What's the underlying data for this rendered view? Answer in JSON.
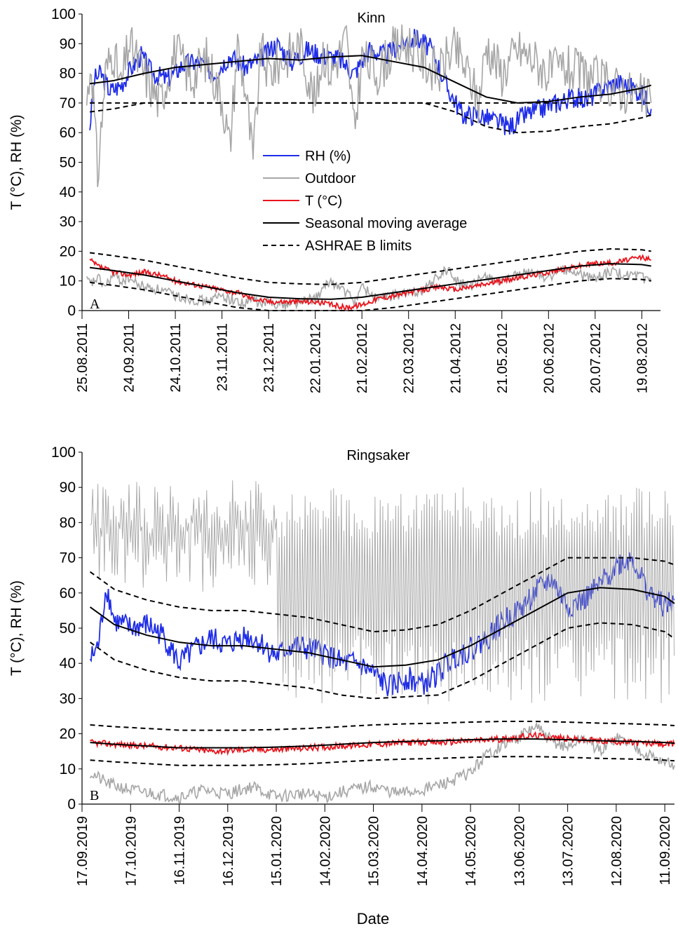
{
  "figure": {
    "x_title": "Date",
    "y_title": "T (°C), RH (%)"
  },
  "chart_data": [
    {
      "type": "line",
      "title": "Kinn",
      "panel_label": "A",
      "ylabel": "T (°C), RH (%)",
      "ylim": [
        0,
        100
      ],
      "yticks": [
        0,
        10,
        20,
        30,
        40,
        50,
        60,
        70,
        80,
        90,
        100
      ],
      "x_tick_labels": [
        "25.08.2011",
        "24.09.2011",
        "24.10.2011",
        "23.11.2011",
        "23.12.2011",
        "22.01.2012",
        "21.02.2012",
        "22.03.2012",
        "21.04.2012",
        "21.05.2012",
        "20.06.2012",
        "20.07.2012",
        "19.08.2012"
      ],
      "x_tick_days": [
        0,
        30,
        60,
        90,
        120,
        150,
        180,
        210,
        240,
        270,
        300,
        330,
        360
      ],
      "xlim_days": [
        0,
        372
      ],
      "legend_position": "center-left",
      "series": [
        {
          "name": "RH (%)",
          "color": "#1f2de8",
          "style": "solid",
          "x_days": [
            5,
            8,
            12,
            18,
            25,
            32,
            38,
            45,
            55,
            65,
            75,
            85,
            95,
            105,
            115,
            125,
            135,
            145,
            155,
            165,
            175,
            185,
            195,
            205,
            215,
            225,
            235,
            245,
            255,
            265,
            275,
            285,
            295,
            305,
            315,
            325,
            335,
            345,
            355,
            362,
            366
          ],
          "values": [
            62,
            78,
            80,
            74,
            76,
            82,
            86,
            80,
            78,
            83,
            84,
            80,
            86,
            82,
            85,
            90,
            84,
            88,
            86,
            85,
            80,
            88,
            86,
            90,
            92,
            88,
            75,
            66,
            66,
            64,
            62,
            66,
            68,
            70,
            72,
            71,
            75,
            77,
            75,
            72,
            68
          ]
        },
        {
          "name": "Outdoor",
          "color": "#a6a6a6",
          "style": "solid",
          "x_days": [
            3,
            6,
            10,
            15,
            20,
            25,
            30,
            35,
            40,
            50,
            60,
            70,
            80,
            90,
            95,
            100,
            105,
            110,
            115,
            120,
            130,
            140,
            150,
            155,
            160,
            170,
            175,
            180,
            190,
            200,
            210,
            220,
            230,
            235,
            240,
            250,
            255,
            260,
            270,
            280,
            290,
            300,
            310,
            320,
            330,
            340,
            350,
            360,
            366
          ],
          "values": [
            10,
            9,
            11,
            8,
            12,
            10,
            11,
            9,
            8,
            7,
            5,
            4,
            3,
            5,
            4,
            3,
            2,
            4,
            2,
            3,
            2,
            3,
            4,
            7,
            10,
            6,
            3,
            8,
            4,
            5,
            6,
            7,
            12,
            14,
            10,
            8,
            10,
            12,
            9,
            12,
            13,
            11,
            14,
            12,
            11,
            13,
            12,
            11,
            10
          ],
          "values_rh": [
            70,
            85,
            45,
            80,
            88,
            75,
            90,
            85,
            80,
            70,
            88,
            78,
            85,
            72,
            55,
            90,
            75,
            50,
            88,
            80,
            85,
            90,
            70,
            88,
            80,
            92,
            60,
            85,
            80,
            88,
            90,
            84,
            80,
            86,
            88,
            78,
            70,
            90,
            80,
            88,
            85,
            80,
            82,
            80,
            78,
            76,
            74,
            72,
            70
          ]
        },
        {
          "name": "T (°C)",
          "color": "#e8141c",
          "style": "solid",
          "x_days": [
            5,
            10,
            20,
            30,
            40,
            50,
            60,
            70,
            80,
            90,
            100,
            110,
            120,
            130,
            140,
            150,
            160,
            170,
            180,
            190,
            200,
            210,
            220,
            230,
            240,
            250,
            260,
            270,
            280,
            290,
            300,
            310,
            320,
            330,
            340,
            350,
            360,
            366
          ],
          "values": [
            17,
            15,
            13,
            12,
            13,
            12,
            10,
            9,
            8,
            7,
            6,
            4,
            3,
            3,
            3,
            3,
            2,
            1,
            2,
            4,
            5,
            6,
            7,
            8,
            7,
            8,
            9,
            10,
            11,
            12,
            13,
            14,
            15,
            16,
            16,
            17,
            18,
            17
          ]
        },
        {
          "name": "Seasonal moving average",
          "color": "#000000",
          "style": "solid",
          "x_days": [
            5,
            20,
            40,
            60,
            80,
            100,
            120,
            140,
            160,
            180,
            200,
            220,
            240,
            260,
            280,
            300,
            320,
            340,
            360,
            366
          ],
          "values_rh": [
            76.5,
            77.5,
            80,
            82,
            83,
            84,
            85,
            84.5,
            85.5,
            86,
            84,
            82,
            77,
            72,
            70,
            70.5,
            72,
            73,
            75,
            76
          ],
          "values": [
            14.5,
            13.5,
            12,
            10,
            8,
            6,
            4.5,
            4,
            3.8,
            4.5,
            6,
            7.5,
            9,
            10.5,
            12,
            13.5,
            15,
            15.8,
            15.5,
            15
          ]
        },
        {
          "name": "ASHRAE B limits",
          "color": "#000000",
          "style": "dashed",
          "x_days": [
            5,
            20,
            40,
            60,
            80,
            100,
            120,
            140,
            160,
            180,
            200,
            220,
            240,
            260,
            280,
            300,
            320,
            340,
            360,
            366
          ],
          "upper_t": [
            19.5,
            18.5,
            17,
            15,
            13,
            11,
            9.5,
            9,
            8.8,
            9.5,
            11,
            12.5,
            14,
            15.5,
            17,
            18.5,
            20,
            20.8,
            20.5,
            20
          ],
          "lower_t": [
            9.5,
            8.5,
            7,
            5,
            3,
            1,
            0,
            0,
            0,
            0,
            1,
            2.5,
            4,
            5.5,
            7,
            8.5,
            10,
            10.8,
            10.5,
            10
          ],
          "upper_rh": [
            70,
            70,
            70,
            70,
            70,
            70,
            70,
            70,
            70,
            70,
            70,
            70,
            70,
            70,
            70,
            70,
            70,
            70,
            70,
            70
          ],
          "lower_rh": [
            67,
            68,
            70,
            70,
            70,
            70,
            70,
            70,
            70,
            70,
            70,
            70,
            67,
            62,
            60,
            60.5,
            62,
            63,
            65,
            66
          ]
        }
      ]
    },
    {
      "type": "line",
      "title": "Ringsaker",
      "panel_label": "B",
      "ylabel": "T (°C), RH (%)",
      "xlabel": "Date",
      "ylim": [
        0,
        100
      ],
      "yticks": [
        0,
        10,
        20,
        30,
        40,
        50,
        60,
        70,
        80,
        90,
        100
      ],
      "x_tick_labels": [
        "17.09.2019",
        "17.10.2019",
        "16.11.2019",
        "16.12.2019",
        "15.01.2020",
        "14.02.2020",
        "15.03.2020",
        "14.04.2020",
        "14.05.2020",
        "13.06.2020",
        "13.07.2020",
        "12.08.2020",
        "11.09.2020"
      ],
      "x_tick_days": [
        0,
        30,
        60,
        90,
        120,
        150,
        180,
        210,
        240,
        270,
        300,
        330,
        360
      ],
      "xlim_days": [
        0,
        366
      ],
      "series": [
        {
          "name": "RH (%)",
          "color": "#1f2de8",
          "style": "solid",
          "x_days": [
            5,
            10,
            15,
            20,
            30,
            40,
            50,
            60,
            70,
            80,
            90,
            100,
            110,
            120,
            130,
            140,
            150,
            160,
            170,
            180,
            190,
            200,
            210,
            220,
            230,
            240,
            250,
            260,
            270,
            280,
            290,
            300,
            310,
            320,
            330,
            340,
            350,
            360,
            366
          ],
          "values": [
            41,
            45,
            62,
            52,
            50,
            51,
            48,
            40,
            44,
            47,
            45,
            48,
            46,
            42,
            45,
            44,
            43,
            40,
            40,
            37,
            33,
            36,
            34,
            37,
            42,
            44,
            47,
            52,
            55,
            60,
            64,
            56,
            58,
            62,
            68,
            70,
            60,
            56,
            58
          ]
        },
        {
          "name": "Outdoor",
          "color": "#a6a6a6",
          "style": "solid",
          "x_days": [
            5,
            15,
            30,
            45,
            60,
            75,
            90,
            105,
            120,
            135,
            150,
            165,
            180,
            195,
            210,
            225,
            240,
            250,
            260,
            270,
            280,
            290,
            300,
            310,
            320,
            330,
            340,
            350,
            360,
            366
          ],
          "values": [
            9,
            6,
            4,
            3,
            2,
            4,
            3,
            5,
            2,
            3,
            2,
            4,
            5,
            3,
            4,
            6,
            9,
            14,
            17,
            19,
            22,
            18,
            16,
            19,
            15,
            19,
            17,
            14,
            12,
            11
          ]
        },
        {
          "name": "T (°C)",
          "color": "#e8141c",
          "style": "solid",
          "x_days": [
            5,
            20,
            40,
            60,
            80,
            100,
            120,
            140,
            160,
            180,
            200,
            220,
            240,
            260,
            280,
            300,
            320,
            340,
            360,
            366
          ],
          "values": [
            17.5,
            17,
            16.5,
            16,
            15,
            15.5,
            15.5,
            16,
            16.5,
            17,
            17.5,
            17.5,
            18,
            18.5,
            19.5,
            18.5,
            18,
            17.5,
            17,
            17
          ]
        },
        {
          "name": "Seasonal moving average",
          "color": "#000000",
          "style": "solid",
          "x_days": [
            5,
            20,
            40,
            60,
            80,
            100,
            120,
            140,
            160,
            180,
            200,
            220,
            240,
            260,
            280,
            300,
            320,
            340,
            360,
            366
          ],
          "values_rh": [
            56,
            51,
            48,
            46,
            45,
            45,
            44,
            43,
            41,
            39,
            39.5,
            41,
            45,
            50,
            55,
            60,
            61.5,
            61,
            59,
            57
          ],
          "values": [
            17.5,
            17,
            16.5,
            16,
            16,
            16,
            16.2,
            16.5,
            17,
            17.5,
            17.8,
            18,
            18.3,
            18.5,
            18.5,
            18.3,
            18,
            17.8,
            17.5,
            17.3
          ]
        },
        {
          "name": "ASHRAE B limits",
          "color": "#000000",
          "style": "dashed",
          "x_days": [
            5,
            20,
            40,
            60,
            80,
            100,
            120,
            140,
            160,
            180,
            200,
            220,
            240,
            260,
            280,
            300,
            320,
            340,
            360,
            366
          ],
          "upper_t": [
            22.5,
            22,
            21.5,
            21,
            21,
            21,
            21.2,
            21.5,
            22,
            22.5,
            22.8,
            23,
            23.3,
            23.5,
            23.5,
            23.3,
            23,
            22.8,
            22.5,
            22.3
          ],
          "lower_t": [
            12.5,
            12,
            11.5,
            11,
            11,
            11,
            11.2,
            11.5,
            12,
            12.5,
            12.8,
            13,
            13.3,
            13.5,
            13.5,
            13.3,
            13,
            12.8,
            12.5,
            12.3
          ],
          "upper_rh": [
            66,
            61,
            58,
            56,
            55,
            55,
            54,
            53,
            51,
            49,
            49.5,
            51,
            55,
            60,
            65,
            70,
            70,
            70,
            69,
            68
          ],
          "lower_rh": [
            46,
            41,
            38,
            36,
            35,
            35,
            34,
            33,
            31,
            30,
            30.5,
            31,
            35,
            40,
            45,
            50,
            51.5,
            51,
            49,
            47
          ]
        }
      ]
    }
  ]
}
